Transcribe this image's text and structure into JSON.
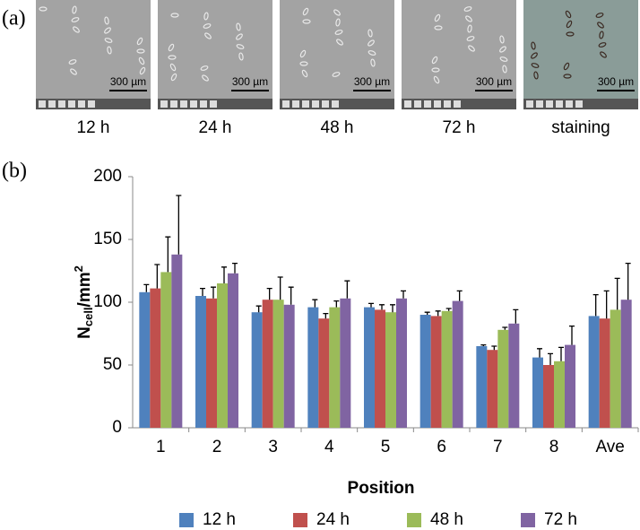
{
  "panel_a": {
    "label": "(a)",
    "images": [
      {
        "caption": "12 h",
        "scale_bar": "300 µm"
      },
      {
        "caption": "24 h",
        "scale_bar": "300 µm"
      },
      {
        "caption": "48 h",
        "scale_bar": "300 µm"
      },
      {
        "caption": "72 h",
        "scale_bar": "300 µm"
      },
      {
        "caption": "staining",
        "scale_bar": "300 µm"
      }
    ]
  },
  "panel_b_label": "(b)",
  "chart_data": {
    "type": "bar",
    "x_label": "Position",
    "y_label": {
      "base": "N",
      "subscript": "cell",
      "unit": "/mm",
      "superscript": "2"
    },
    "categories": [
      "1",
      "2",
      "3",
      "4",
      "5",
      "6",
      "7",
      "8",
      "Ave"
    ],
    "series": [
      {
        "name": "12 h",
        "color": "#4f81bd",
        "values": [
          108,
          105,
          92,
          96,
          96,
          90,
          65,
          56,
          89
        ],
        "errors": [
          6,
          6,
          5,
          6,
          3,
          2,
          1,
          7,
          17
        ]
      },
      {
        "name": "24 h",
        "color": "#c0504d",
        "values": [
          111,
          103,
          102,
          87,
          94,
          89,
          62,
          50,
          87
        ],
        "errors": [
          19,
          9,
          9,
          4,
          4,
          4,
          3,
          9,
          22
        ]
      },
      {
        "name": "48 h",
        "color": "#9bbb59",
        "values": [
          124,
          115,
          102,
          96,
          92,
          93,
          78,
          53,
          94
        ],
        "errors": [
          28,
          13,
          18,
          5,
          6,
          2,
          2,
          11,
          25
        ]
      },
      {
        "name": "72 h",
        "color": "#8064a2",
        "values": [
          138,
          123,
          98,
          103,
          103,
          101,
          83,
          66,
          102
        ],
        "errors": [
          47,
          8,
          14,
          14,
          6,
          8,
          11,
          15,
          29
        ]
      }
    ],
    "ylim": [
      0,
      200
    ],
    "yticks": [
      0,
      50,
      100,
      150,
      200
    ],
    "grid": false,
    "legend": "bottom"
  }
}
